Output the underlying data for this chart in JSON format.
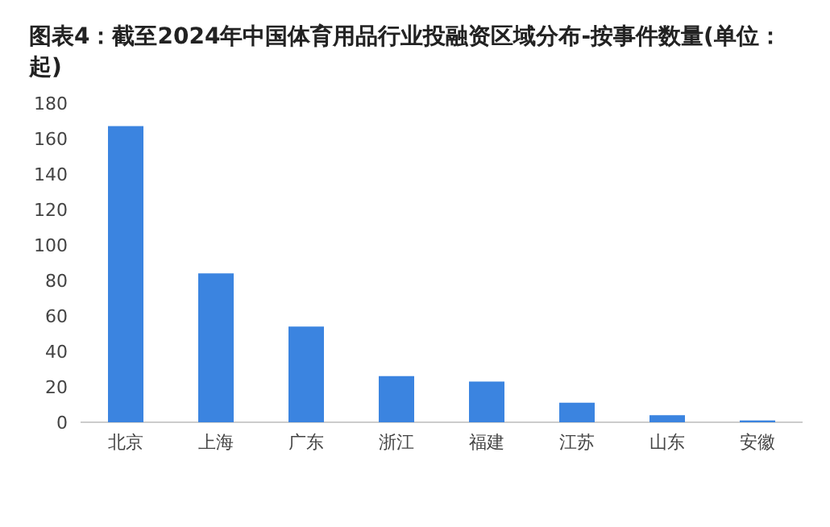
{
  "chart_data": {
    "type": "bar",
    "title": "图表4：截至2024年中国体育用品行业投融资区域分布-按事件数量(单位：起)",
    "categories": [
      "北京",
      "上海",
      "广东",
      "浙江",
      "福建",
      "江苏",
      "山东",
      "安徽"
    ],
    "values": [
      167,
      84,
      54,
      26,
      23,
      11,
      4,
      1
    ],
    "color": "#3b84e0",
    "ylim": [
      0,
      180
    ],
    "yticks": [
      0,
      20,
      40,
      60,
      80,
      100,
      120,
      140,
      160,
      180
    ],
    "grid": false
  }
}
